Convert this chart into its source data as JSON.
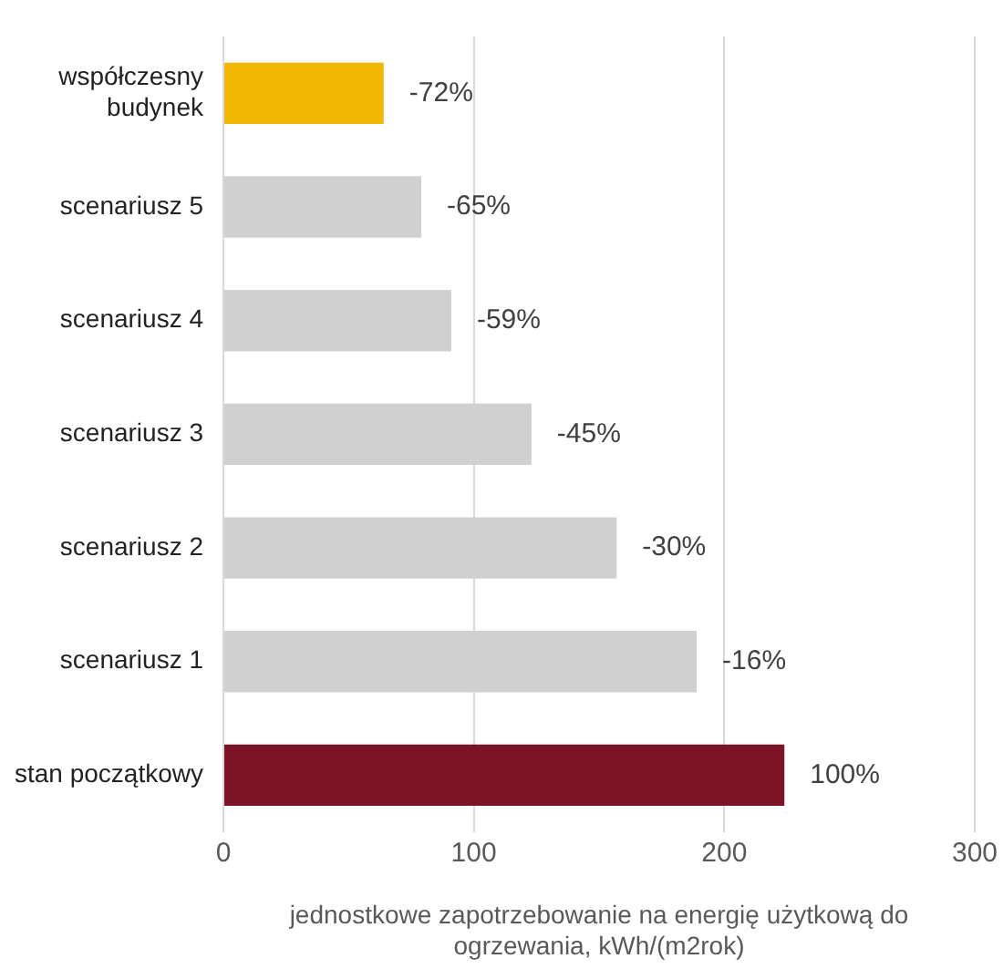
{
  "chart_data": {
    "type": "bar",
    "orientation": "horizontal",
    "categories": [
      "współczesny budynek",
      "scenariusz 5",
      "scenariusz 4",
      "scenariusz 3",
      "scenariusz 2",
      "scenariusz 1",
      "stan początkowy"
    ],
    "values": [
      64,
      79,
      91,
      123,
      157,
      189,
      224
    ],
    "colors": [
      "#f2b705",
      "#d0d0d0",
      "#d0d0d0",
      "#d0d0d0",
      "#d0d0d0",
      "#d0d0d0",
      "#7a1426"
    ],
    "annotations": [
      {
        "text": "-72%",
        "x": 64,
        "y": "współczesny budynek"
      },
      {
        "text": "-65%",
        "x": 79,
        "y": "scenariusz 5"
      },
      {
        "text": "-59%",
        "x": 91,
        "y": "scenariusz 4"
      },
      {
        "text": "-45%",
        "x": 123,
        "y": "scenariusz 3"
      },
      {
        "text": "-30%",
        "x": 157,
        "y": "scenariusz 2"
      },
      {
        "text": "-16%",
        "x": 189,
        "y": "scenariusz 1"
      },
      {
        "text": "100%",
        "x": 224,
        "y": "stan początkowy"
      }
    ],
    "xlim": [
      0,
      300
    ],
    "xticks": [
      0,
      100,
      200,
      300
    ],
    "grid": "x",
    "legend": false,
    "xlabel": "jednostkowe zapotrzebowanie na energię użytkową do ogrzewania, kWh/(m2rok)"
  }
}
